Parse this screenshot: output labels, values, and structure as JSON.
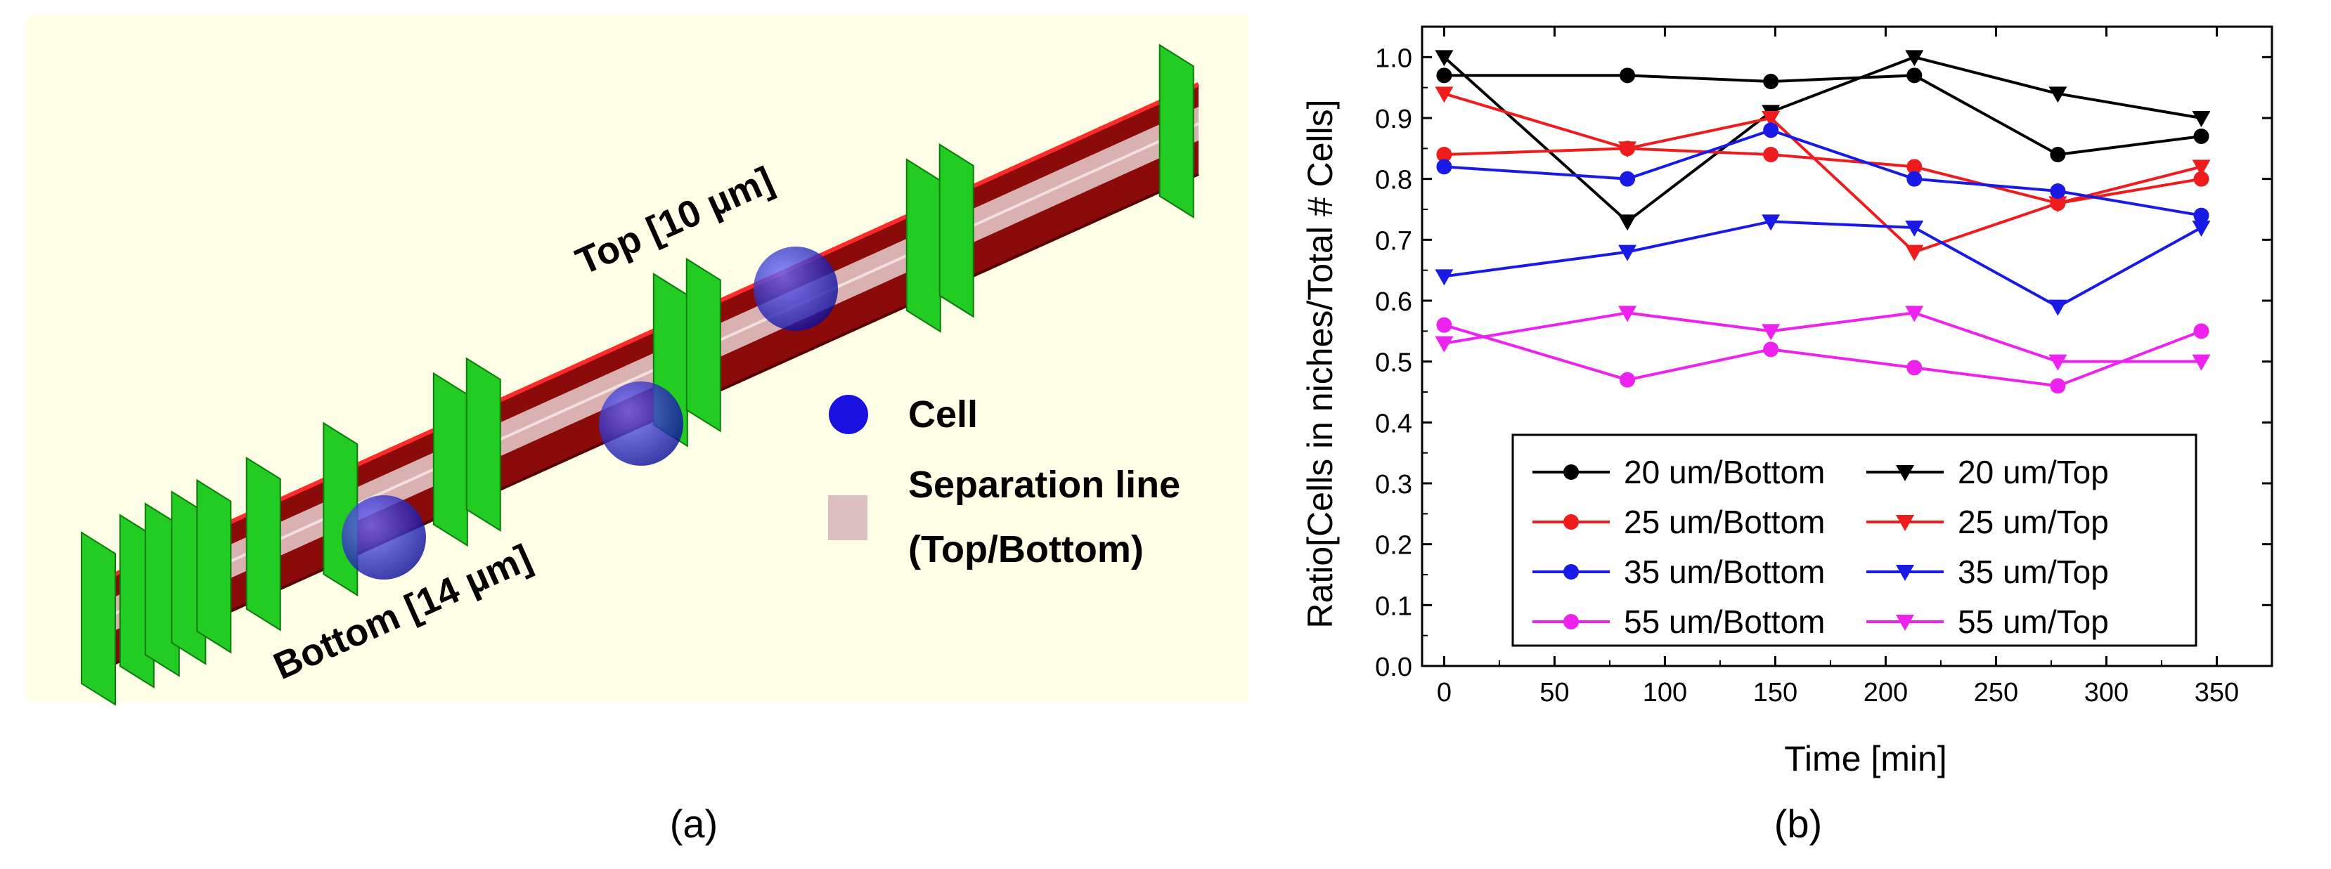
{
  "panel_a": {
    "top_label": "Top [10 µm]",
    "bottom_label": "Bottom [14 µm]",
    "legend": [
      {
        "label": "Cell",
        "symbol": "circle",
        "color": "#1a10e0"
      },
      {
        "label": "Separation line",
        "symbol": "square",
        "color": "#dcbfbf"
      },
      {
        "label": "(Top/Bottom)"
      }
    ],
    "caption": "(a)",
    "colors": {
      "background": "#fefee6",
      "channel": "#8b0a0a",
      "edge": "#ff2b2b",
      "posts": "#22cc22",
      "separation": "#dcbfbf"
    }
  },
  "panel_b": {
    "caption": "(b)",
    "chart_data": {
      "type": "line",
      "xlabel": "Time [min]",
      "ylabel": "Ratio[Cells in niches/Total # Cells]",
      "xlim": [
        -10,
        375
      ],
      "ylim": [
        0.0,
        1.05
      ],
      "xticks": [
        0,
        50,
        100,
        150,
        200,
        250,
        300,
        350
      ],
      "yticks": [
        0.0,
        0.1,
        0.2,
        0.3,
        0.4,
        0.5,
        0.6,
        0.7,
        0.8,
        0.9,
        1.0
      ],
      "x": [
        0,
        83,
        148,
        213,
        278,
        343
      ],
      "legend_position": "bottom-center",
      "grid": false,
      "series": [
        {
          "name": "20 um/Bottom",
          "marker": "circle",
          "color": "#000000",
          "values": [
            0.97,
            0.97,
            0.96,
            0.97,
            0.84,
            0.87
          ]
        },
        {
          "name": "20 um/Top",
          "marker": "triangle-down",
          "color": "#000000",
          "values": [
            1.0,
            0.73,
            0.91,
            1.0,
            0.94,
            0.9
          ]
        },
        {
          "name": "25 um/Bottom",
          "marker": "circle",
          "color": "#ee1c1c",
          "values": [
            0.84,
            0.85,
            0.84,
            0.82,
            0.76,
            0.8
          ]
        },
        {
          "name": "25 um/Top",
          "marker": "triangle-down",
          "color": "#ee1c1c",
          "values": [
            0.94,
            0.85,
            0.9,
            0.68,
            0.76,
            0.82
          ]
        },
        {
          "name": "35 um/Bottom",
          "marker": "circle",
          "color": "#1a1ae6",
          "values": [
            0.82,
            0.8,
            0.88,
            0.8,
            0.78,
            0.74
          ]
        },
        {
          "name": "35 um/Top",
          "marker": "triangle-down",
          "color": "#1a1ae6",
          "values": [
            0.64,
            0.68,
            0.73,
            0.72,
            0.59,
            0.72
          ]
        },
        {
          "name": "55 um/Bottom",
          "marker": "circle",
          "color": "#ee22ee",
          "values": [
            0.56,
            0.47,
            0.52,
            0.49,
            0.46,
            0.55
          ]
        },
        {
          "name": "55 um/Top",
          "marker": "triangle-down",
          "color": "#ee22ee",
          "values": [
            0.53,
            0.58,
            0.55,
            0.58,
            0.5,
            0.5
          ]
        }
      ]
    }
  }
}
